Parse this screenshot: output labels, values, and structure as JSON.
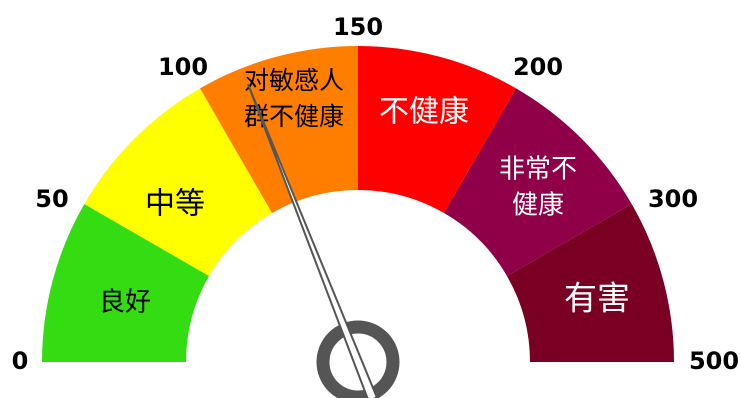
{
  "gauge": {
    "tick_labels": [
      "0",
      "50",
      "100",
      "150",
      "200",
      "300",
      "500"
    ],
    "bands": [
      {
        "label_lines": [
          "良好"
        ],
        "color": "#33dd11",
        "text_color": "#000000"
      },
      {
        "label_lines": [
          "中等"
        ],
        "color": "#ffff00",
        "text_color": "#000000"
      },
      {
        "label_lines": [
          "对敏感人",
          "群不健康"
        ],
        "color": "#ff7e00",
        "text_color": "#000000"
      },
      {
        "label_lines": [
          "不健康"
        ],
        "color": "#ff0000",
        "text_color": "#ffffff"
      },
      {
        "label_lines": [
          "非常不",
          "健康"
        ],
        "color": "#8f0048",
        "text_color": "#ffffff"
      },
      {
        "label_lines": [
          "有害"
        ],
        "color": "#7a0023",
        "text_color": "#ffffff"
      }
    ],
    "needle_value": 114,
    "needle_color": "#ffffff",
    "hub_color": "#555555"
  }
}
